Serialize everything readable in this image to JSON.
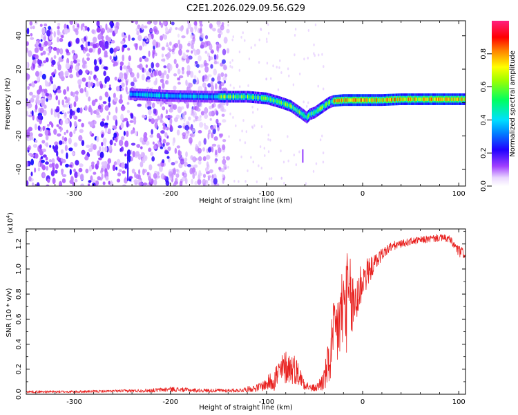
{
  "title": "C2E1.2026.029.09.56.G29",
  "chart_data": [
    {
      "type": "heatmap",
      "xlabel": "Height of straight line (km)",
      "ylabel": "Frequency (Hz)",
      "xlim": [
        -350,
        107
      ],
      "ylim": [
        -50,
        49
      ],
      "xticks": [
        -300,
        -200,
        -100,
        0,
        100
      ],
      "yticks": [
        -40,
        -20,
        0,
        20,
        40
      ],
      "colorbar": {
        "label": "Normalized spectral amplitude",
        "ticks": [
          0.0,
          0.2,
          0.4,
          0.6,
          0.8
        ],
        "tick_labels": [
          "0.0",
          "0.2",
          "0.4",
          "0.6",
          "0.8"
        ],
        "range": [
          0,
          1
        ],
        "colormap": "rainbow (white, violet, blue, cyan, green, yellow, red, magenta)"
      },
      "ridge": {
        "x": [
          -240,
          -200,
          -160,
          -140,
          -120,
          -100,
          -85,
          -75,
          -65,
          -58,
          -55,
          -50,
          -45,
          -40,
          -35,
          -30,
          -20,
          -10,
          0,
          20,
          40,
          60,
          80,
          100,
          107
        ],
        "y": [
          5,
          4,
          3.5,
          3.5,
          3.5,
          2.5,
          0,
          -2,
          -6,
          -9,
          -7,
          -6,
          -4,
          -2,
          0,
          1,
          1.5,
          1.5,
          1.5,
          1.5,
          2,
          2,
          2,
          2,
          2
        ]
      },
      "noise_region_x": [
        -350,
        -140
      ]
    },
    {
      "type": "line",
      "xlabel": "Height of straight line (km)",
      "ylabel": "SNR (10 * v/v)",
      "y_multiplier_label": "(x10",
      "y_multiplier_exp": "4",
      "y_multiplier_close": ")",
      "xlim": [
        -350,
        107
      ],
      "ylim": [
        0,
        1.32
      ],
      "xticks": [
        -300,
        -200,
        -100,
        0,
        100
      ],
      "yticks": [
        0.0,
        0.2,
        0.4,
        0.6,
        0.8,
        1.0,
        1.2
      ],
      "ytick_labels": [
        "0.0",
        "0.2",
        "0.4",
        "0.6",
        "0.8",
        "1.0",
        "1.2"
      ],
      "series": [
        {
          "color": "#e8201e",
          "envelope": {
            "x": [
              -350,
              -300,
              -260,
              -220,
              -200,
              -170,
              -130,
              -110,
              -100,
              -90,
              -80,
              -70,
              -62,
              -55,
              -48,
              -40,
              -35,
              -30,
              -25,
              -20,
              -15,
              -10,
              -5,
              0,
              10,
              20,
              30,
              40,
              50,
              60,
              70,
              80,
              90,
              100,
              107
            ],
            "mean": [
              0.02,
              0.02,
              0.025,
              0.03,
              0.04,
              0.03,
              0.03,
              0.05,
              0.08,
              0.14,
              0.22,
              0.2,
              0.1,
              0.05,
              0.05,
              0.12,
              0.25,
              0.45,
              0.55,
              0.7,
              0.75,
              0.7,
              0.8,
              0.92,
              1.02,
              1.12,
              1.18,
              1.2,
              1.22,
              1.23,
              1.24,
              1.25,
              1.24,
              1.14,
              1.12
            ],
            "amp": [
              0.01,
              0.01,
              0.01,
              0.015,
              0.02,
              0.015,
              0.015,
              0.03,
              0.05,
              0.12,
              0.14,
              0.12,
              0.06,
              0.03,
              0.03,
              0.1,
              0.2,
              0.3,
              0.35,
              0.4,
              0.4,
              0.3,
              0.25,
              0.16,
              0.08,
              0.05,
              0.04,
              0.03,
              0.03,
              0.03,
              0.03,
              0.03,
              0.03,
              0.05,
              0.04
            ]
          }
        }
      ]
    }
  ]
}
